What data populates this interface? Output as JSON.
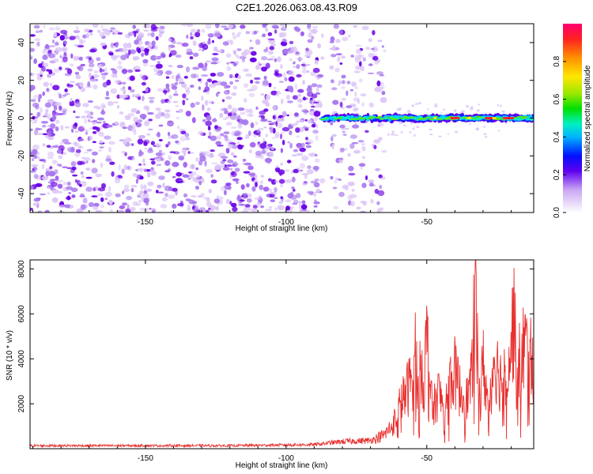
{
  "title": "C2E1.2026.063.08.43.R09",
  "colors": {
    "snr_line": "#e8302f",
    "speckle_strong": "#6a00e6",
    "speckle_mid": "#a675ef",
    "speckle_weak": "#dcc6f7"
  },
  "chart_data": [
    {
      "type": "heatmap",
      "name": "spectrogram",
      "xlabel": "Height of straight line (km)",
      "ylabel": "Frequency (Hz)",
      "xlim": [
        -191,
        -12
      ],
      "ylim": [
        -50,
        50
      ],
      "xticks": [
        -150,
        -100,
        -50
      ],
      "yticks": [
        -40,
        -20,
        0,
        20,
        40
      ],
      "xtick_labels": [
        "-150",
        "-100",
        "-50"
      ],
      "ytick_labels": [
        "-40",
        "-20",
        "0",
        "20",
        "40"
      ],
      "colorbar": {
        "label": "Normalized spectral amplitude",
        "range": [
          0.0,
          1.0
        ],
        "ticks": [
          0.0,
          0.2,
          0.4,
          0.6,
          0.8
        ],
        "tick_labels": [
          "0.0",
          "0.2",
          "0.4",
          "0.6",
          "0.8"
        ]
      },
      "features": [
        {
          "description": "broadband noise",
          "x_range": [
            -191,
            -87
          ],
          "amplitude": 0.1
        },
        {
          "description": "sparse noise",
          "x_range": [
            -84,
            -65
          ],
          "amplitude": 0.05
        },
        {
          "description": "signal band",
          "x_range": [
            -87,
            -12
          ],
          "frequency_hz": 0,
          "peak_amplitude": 1.0
        }
      ]
    },
    {
      "type": "line",
      "name": "snr",
      "xlabel": "Height of straight line (km)",
      "ylabel": "SNR (10 * v/v)",
      "xlim": [
        -191,
        -12
      ],
      "ylim": [
        0,
        8400
      ],
      "xticks": [
        -150,
        -100,
        -50
      ],
      "yticks": [
        2000,
        4000,
        6000,
        8000
      ],
      "xtick_labels": [
        "-150",
        "-100",
        "-50"
      ],
      "ytick_labels": [
        "2000",
        "4000",
        "6000",
        "8000"
      ],
      "series": [
        {
          "name": "SNR envelope",
          "x": [
            -191,
            -150,
            -120,
            -90,
            -80,
            -70,
            -65,
            -62,
            -60,
            -58,
            -56,
            -55,
            -54,
            -53,
            -52,
            -51,
            -50,
            -48,
            -46,
            -44,
            -42,
            -40,
            -38,
            -36,
            -34,
            -33,
            -32,
            -31,
            -30,
            -28,
            -26,
            -24,
            -22,
            -20,
            -19,
            -18,
            -17,
            -16,
            -15,
            -14,
            -12
          ],
          "values": [
            150,
            150,
            150,
            200,
            350,
            400,
            700,
            1200,
            2000,
            2600,
            3300,
            3600,
            5000,
            2600,
            4400,
            3200,
            5600,
            1800,
            2800,
            2200,
            3300,
            3800,
            2800,
            2400,
            3400,
            8300,
            5000,
            2200,
            4300,
            2000,
            4700,
            3500,
            4000,
            5000,
            6900,
            3100,
            4400,
            4800,
            5400,
            4200,
            5000
          ]
        }
      ]
    }
  ]
}
